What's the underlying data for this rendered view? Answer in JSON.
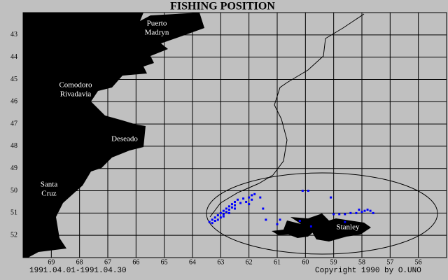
{
  "chart_data": {
    "type": "scatter",
    "title": "FISHING POSITION",
    "xlim": [
      70,
      55
    ],
    "ylim": [
      42,
      53
    ],
    "xticks": [
      69,
      68,
      67,
      66,
      65,
      64,
      63,
      62,
      61,
      60,
      59,
      58,
      57,
      56
    ],
    "yticks": [
      43,
      44,
      45,
      46,
      47,
      48,
      49,
      50,
      51,
      52
    ],
    "grid": true,
    "series": [
      {
        "color": "#0000ff",
        "x": [
          63.4,
          63.3,
          63.2,
          63.1,
          63.0,
          62.9,
          62.8,
          62.7,
          62.6,
          62.5,
          62.4,
          62.2,
          62.0,
          61.9,
          61.8,
          61.6,
          63.3,
          63.2,
          63.0,
          62.9,
          62.8,
          62.7,
          62.6,
          62.5,
          62.3,
          62.1,
          62.0,
          61.9,
          63.1,
          62.9,
          62.7,
          62.5,
          61.5,
          61.4,
          60.9,
          60.1,
          59.9,
          59.1,
          59.0,
          58.8,
          58.6,
          58.4,
          58.2,
          58.0,
          57.9,
          57.8,
          57.7,
          58.1,
          57.6,
          58.6,
          59.8,
          60.2,
          61.0
        ],
        "y": [
          51.4,
          51.3,
          51.2,
          51.1,
          51.0,
          50.9,
          50.8,
          50.7,
          50.6,
          50.5,
          50.4,
          50.35,
          50.3,
          50.2,
          50.15,
          50.3,
          51.45,
          51.35,
          51.2,
          51.05,
          50.95,
          50.85,
          50.75,
          50.65,
          50.55,
          50.5,
          50.6,
          50.4,
          51.3,
          51.15,
          51.0,
          50.8,
          50.8,
          51.3,
          51.3,
          50.0,
          50.0,
          50.3,
          51.05,
          51.05,
          51.05,
          51.0,
          51.0,
          50.95,
          50.9,
          50.85,
          50.9,
          50.85,
          51.0,
          51.4,
          51.6,
          51.35,
          51.5
        ]
      }
    ],
    "places": [
      {
        "lines": [
          "Puerto",
          "Madryn"
        ]
      },
      {
        "lines": [
          "Comodoro",
          "Rivadavia"
        ]
      },
      {
        "lines": [
          "Deseado"
        ]
      },
      {
        "lines": [
          "Santa",
          "Cruz"
        ]
      },
      {
        "lines": [
          "Stanley"
        ]
      }
    ],
    "period": "1991.04.01-1991.04.30",
    "copyright": "Copyright 1990 by O.UNO"
  }
}
